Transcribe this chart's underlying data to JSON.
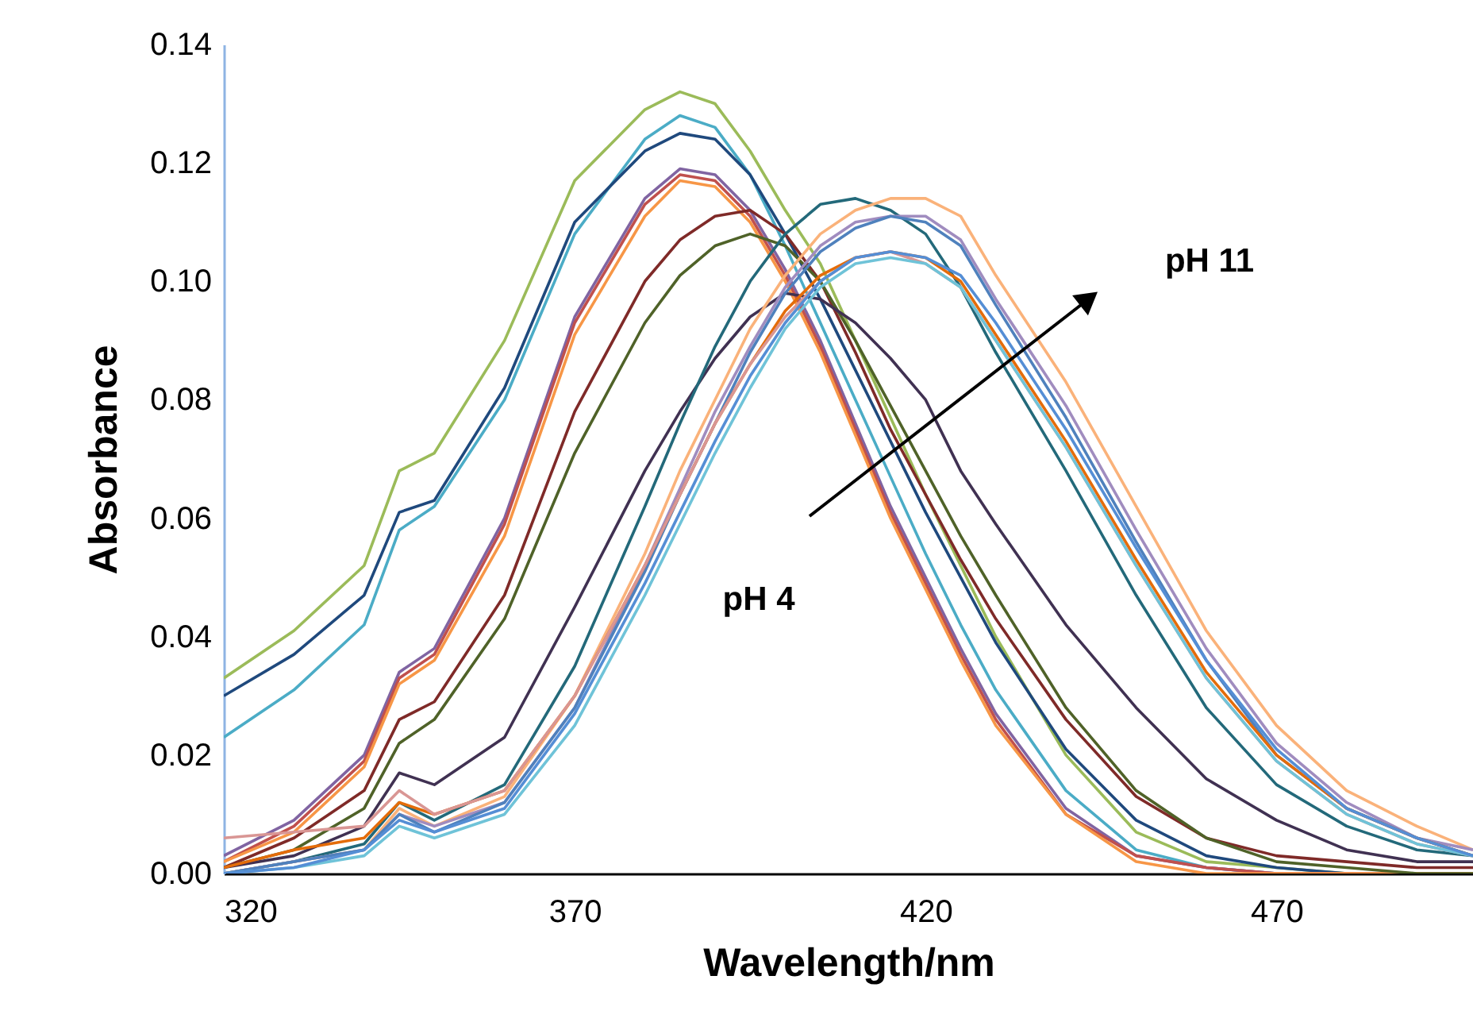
{
  "chart_data": {
    "type": "line",
    "xlabel": "Wavelength/nm",
    "ylabel": "Absorbance",
    "annotations": [
      "pH 4",
      "pH 11"
    ],
    "x": [
      320,
      330,
      340,
      345,
      350,
      360,
      370,
      380,
      385,
      390,
      395,
      400,
      405,
      410,
      415,
      420,
      425,
      430,
      440,
      450,
      460,
      470,
      480,
      490,
      498
    ],
    "xlim": [
      320,
      498
    ],
    "xticks": [
      320,
      370,
      420,
      470
    ],
    "ylim": [
      0,
      0.14
    ],
    "yticks": [
      {
        "value": 0,
        "label": "0.00"
      },
      {
        "value": 0.02,
        "label": "0.02"
      },
      {
        "value": 0.04,
        "label": "0.04"
      },
      {
        "value": 0.06,
        "label": "0.06"
      },
      {
        "value": 0.08,
        "label": "0.08"
      },
      {
        "value": 0.1,
        "label": "0.10"
      },
      {
        "value": 0.12,
        "label": "0.12"
      },
      {
        "value": 0.14,
        "label": "0.14"
      }
    ],
    "grid": false,
    "legend": false,
    "marker": "none",
    "line_style": "solid",
    "series": [
      {
        "color": "#9bbb59",
        "values": [
          0.033,
          0.041,
          0.052,
          0.068,
          0.071,
          0.09,
          0.117,
          0.129,
          0.132,
          0.13,
          0.122,
          0.112,
          0.103,
          0.09,
          0.077,
          0.064,
          0.052,
          0.04,
          0.02,
          0.007,
          0.002,
          0.001,
          0,
          0,
          0
        ]
      },
      {
        "color": "#4bacc6",
        "values": [
          0.023,
          0.031,
          0.042,
          0.058,
          0.062,
          0.08,
          0.108,
          0.124,
          0.128,
          0.126,
          0.118,
          0.106,
          0.093,
          0.08,
          0.067,
          0.054,
          0.042,
          0.031,
          0.014,
          0.004,
          0.001,
          0,
          null,
          null,
          null
        ]
      },
      {
        "color": "#1f497d",
        "values": [
          0.03,
          0.037,
          0.047,
          0.061,
          0.063,
          0.082,
          0.11,
          0.122,
          0.125,
          0.124,
          0.118,
          0.108,
          0.097,
          0.085,
          0.073,
          0.061,
          0.05,
          0.039,
          0.021,
          0.009,
          0.003,
          0.001,
          0,
          0,
          0
        ]
      },
      {
        "color": "#8064a2",
        "values": [
          0.003,
          0.009,
          0.02,
          0.034,
          0.038,
          0.06,
          0.094,
          0.114,
          0.119,
          0.118,
          0.112,
          0.102,
          0.09,
          0.076,
          0.062,
          0.05,
          0.038,
          0.027,
          0.011,
          0.003,
          0.001,
          0,
          0,
          0,
          0
        ]
      },
      {
        "color": "#c0504d",
        "values": [
          0.002,
          0.008,
          0.019,
          0.033,
          0.037,
          0.059,
          0.093,
          0.113,
          0.118,
          0.117,
          0.111,
          0.101,
          0.089,
          0.075,
          0.061,
          0.049,
          0.037,
          0.026,
          0.01,
          0.003,
          0.001,
          0,
          0,
          0,
          0
        ]
      },
      {
        "color": "#f79646",
        "values": [
          0.002,
          0.007,
          0.018,
          0.032,
          0.036,
          0.057,
          0.091,
          0.111,
          0.117,
          0.116,
          0.11,
          0.1,
          0.088,
          0.074,
          0.06,
          0.048,
          0.036,
          0.025,
          0.01,
          0.002,
          0,
          0,
          0,
          0,
          0
        ]
      },
      {
        "color": "#7f2a28",
        "values": [
          0.001,
          0.006,
          0.014,
          0.026,
          0.029,
          0.047,
          0.078,
          0.1,
          0.107,
          0.111,
          0.112,
          0.108,
          0.1,
          0.088,
          0.075,
          0.064,
          0.053,
          0.043,
          0.026,
          0.013,
          0.006,
          0.003,
          0.002,
          0.001,
          0.001
        ]
      },
      {
        "color": "#4f6228",
        "values": [
          0.001,
          0.004,
          0.011,
          0.022,
          0.026,
          0.043,
          0.071,
          0.093,
          0.101,
          0.106,
          0.108,
          0.106,
          0.1,
          0.09,
          0.079,
          0.068,
          0.057,
          0.047,
          0.028,
          0.014,
          0.006,
          0.002,
          0.001,
          0,
          0
        ]
      },
      {
        "color": "#403152",
        "values": [
          0.001,
          0.003,
          0.008,
          0.017,
          0.015,
          0.023,
          0.045,
          0.068,
          0.078,
          0.087,
          0.094,
          0.098,
          0.097,
          0.093,
          0.087,
          0.08,
          0.068,
          0.059,
          0.042,
          0.028,
          0.016,
          0.009,
          0.004,
          0.002,
          0.002
        ]
      },
      {
        "color": "#23697a",
        "values": [
          0,
          0.002,
          0.005,
          0.012,
          0.009,
          0.015,
          0.035,
          0.062,
          0.076,
          0.089,
          0.1,
          0.108,
          0.113,
          0.114,
          0.112,
          0.108,
          0.099,
          0.088,
          0.068,
          0.047,
          0.028,
          0.015,
          0.008,
          0.004,
          0.003
        ]
      },
      {
        "color": "#fab27a",
        "values": [
          0,
          0.002,
          0.004,
          0.011,
          0.008,
          0.013,
          0.03,
          0.054,
          0.068,
          0.08,
          0.092,
          0.101,
          0.108,
          0.112,
          0.114,
          0.114,
          0.111,
          0.101,
          0.083,
          0.062,
          0.041,
          0.025,
          0.014,
          0.008,
          0.004
        ]
      },
      {
        "color": "#a08cbf",
        "values": [
          0,
          0.002,
          0.004,
          0.01,
          0.008,
          0.012,
          0.028,
          0.052,
          0.065,
          0.078,
          0.089,
          0.099,
          0.106,
          0.11,
          0.111,
          0.111,
          0.107,
          0.097,
          0.079,
          0.058,
          0.038,
          0.022,
          0.012,
          0.006,
          0.004
        ]
      },
      {
        "color": "#4f81bd",
        "values": [
          0,
          0.002,
          0.004,
          0.01,
          0.007,
          0.012,
          0.028,
          0.051,
          0.064,
          0.076,
          0.088,
          0.098,
          0.105,
          0.109,
          0.111,
          0.11,
          0.106,
          0.096,
          0.077,
          0.056,
          0.036,
          0.02,
          0.011,
          0.006,
          0.003
        ]
      },
      {
        "color": "#e46c0a",
        "values": [
          0.001,
          0.004,
          0.006,
          0.012,
          0.01,
          0.014,
          0.03,
          0.052,
          0.064,
          0.076,
          0.086,
          0.095,
          0.101,
          0.104,
          0.105,
          0.104,
          0.1,
          0.091,
          0.073,
          0.053,
          0.034,
          0.02,
          0.011,
          0.006,
          0.003
        ]
      },
      {
        "color": "#d99694",
        "values": [
          0.006,
          0.007,
          0.008,
          0.014,
          0.01,
          0.014,
          0.03,
          0.052,
          0.064,
          0.076,
          0.086,
          0.094,
          0.1,
          0.104,
          0.105,
          0.103,
          0.099,
          0.09,
          0.072,
          0.052,
          0.033,
          0.019,
          0.01,
          0.005,
          0.003
        ]
      },
      {
        "color": "#6fc3d8",
        "values": [
          0,
          0.001,
          0.003,
          0.008,
          0.006,
          0.01,
          0.025,
          0.047,
          0.059,
          0.071,
          0.082,
          0.092,
          0.099,
          0.103,
          0.104,
          0.103,
          0.099,
          0.09,
          0.072,
          0.052,
          0.033,
          0.019,
          0.01,
          0.005,
          0.003
        ]
      },
      {
        "color": "#558ed5",
        "values": [
          0,
          0.001,
          0.004,
          0.009,
          0.007,
          0.011,
          0.027,
          0.049,
          0.061,
          0.073,
          0.084,
          0.093,
          0.1,
          0.104,
          0.105,
          0.104,
          0.101,
          0.093,
          0.075,
          0.055,
          0.036,
          0.021,
          0.011,
          0.006,
          0.003
        ]
      }
    ]
  }
}
